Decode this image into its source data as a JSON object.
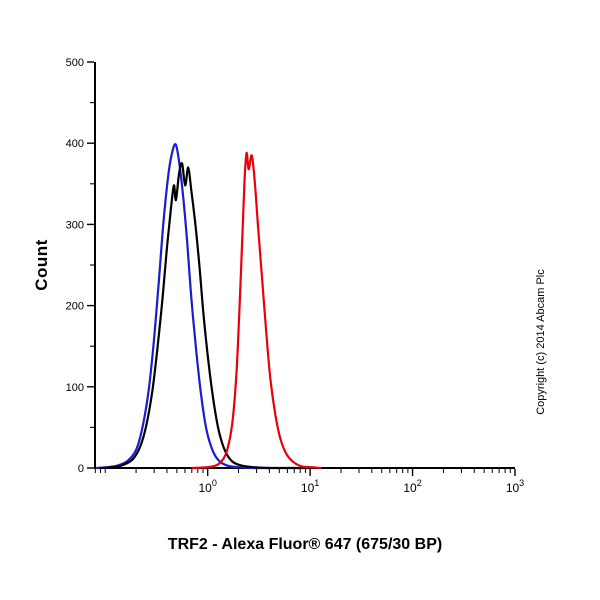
{
  "chart_data": {
    "type": "line",
    "title": "",
    "xlabel": "TRF2 - Alexa Fluor® 647 (675/30 BP)",
    "ylabel": "Count",
    "copyright": "Copyright (c) 2014 Abcam Plc",
    "x_scale": "log",
    "x_domain_log": [
      -1.1,
      3
    ],
    "ylim": [
      0,
      500
    ],
    "y_ticks": [
      0,
      100,
      200,
      300,
      400,
      500
    ],
    "y_minor_ticks": [
      50,
      150,
      250,
      350,
      450
    ],
    "x_ticks": [
      {
        "log": 0,
        "base": "10",
        "exp": "0"
      },
      {
        "log": 1,
        "base": "10",
        "exp": "1"
      },
      {
        "log": 2,
        "base": "10",
        "exp": "2"
      },
      {
        "log": 3,
        "base": "10",
        "exp": "3"
      }
    ],
    "grid": false,
    "legend": "none",
    "series": [
      {
        "name": "blue",
        "color": "#1c1ccd",
        "points": [
          [
            -1.08,
            0
          ],
          [
            -0.98,
            1
          ],
          [
            -0.88,
            3
          ],
          [
            -0.78,
            9
          ],
          [
            -0.7,
            22
          ],
          [
            -0.64,
            48
          ],
          [
            -0.58,
            92
          ],
          [
            -0.53,
            150
          ],
          [
            -0.48,
            225
          ],
          [
            -0.43,
            305
          ],
          [
            -0.38,
            365
          ],
          [
            -0.34,
            392
          ],
          [
            -0.31,
            398
          ],
          [
            -0.28,
            378
          ],
          [
            -0.24,
            335
          ],
          [
            -0.2,
            278
          ],
          [
            -0.16,
            210
          ],
          [
            -0.11,
            142
          ],
          [
            -0.06,
            86
          ],
          [
            -0.01,
            46
          ],
          [
            0.05,
            21
          ],
          [
            0.11,
            9
          ],
          [
            0.19,
            3
          ],
          [
            0.3,
            1
          ],
          [
            0.45,
            0
          ],
          [
            0.6,
            0
          ]
        ]
      },
      {
        "name": "black",
        "color": "#000000",
        "points": [
          [
            -1.05,
            0
          ],
          [
            -0.92,
            1
          ],
          [
            -0.82,
            4
          ],
          [
            -0.73,
            11
          ],
          [
            -0.66,
            26
          ],
          [
            -0.6,
            52
          ],
          [
            -0.54,
            95
          ],
          [
            -0.49,
            148
          ],
          [
            -0.44,
            210
          ],
          [
            -0.4,
            268
          ],
          [
            -0.36,
            318
          ],
          [
            -0.33,
            348
          ],
          [
            -0.31,
            330
          ],
          [
            -0.28,
            362
          ],
          [
            -0.25,
            375
          ],
          [
            -0.22,
            348
          ],
          [
            -0.19,
            370
          ],
          [
            -0.16,
            342
          ],
          [
            -0.12,
            300
          ],
          [
            -0.08,
            248
          ],
          [
            -0.04,
            188
          ],
          [
            0.01,
            128
          ],
          [
            0.06,
            80
          ],
          [
            0.11,
            45
          ],
          [
            0.17,
            21
          ],
          [
            0.24,
            8
          ],
          [
            0.33,
            3
          ],
          [
            0.45,
            1
          ],
          [
            0.6,
            0
          ],
          [
            0.8,
            0
          ],
          [
            1.0,
            0
          ]
        ]
      },
      {
        "name": "red",
        "color": "#e8000d",
        "points": [
          [
            -0.15,
            0
          ],
          [
            0.0,
            1
          ],
          [
            0.08,
            3
          ],
          [
            0.14,
            9
          ],
          [
            0.19,
            22
          ],
          [
            0.24,
            55
          ],
          [
            0.28,
            115
          ],
          [
            0.31,
            195
          ],
          [
            0.34,
            290
          ],
          [
            0.36,
            355
          ],
          [
            0.38,
            388
          ],
          [
            0.4,
            368
          ],
          [
            0.43,
            385
          ],
          [
            0.46,
            352
          ],
          [
            0.49,
            300
          ],
          [
            0.53,
            235
          ],
          [
            0.57,
            170
          ],
          [
            0.61,
            112
          ],
          [
            0.66,
            66
          ],
          [
            0.71,
            36
          ],
          [
            0.77,
            17
          ],
          [
            0.84,
            7
          ],
          [
            0.92,
            2
          ],
          [
            1.02,
            1
          ],
          [
            1.1,
            0
          ]
        ]
      }
    ]
  }
}
